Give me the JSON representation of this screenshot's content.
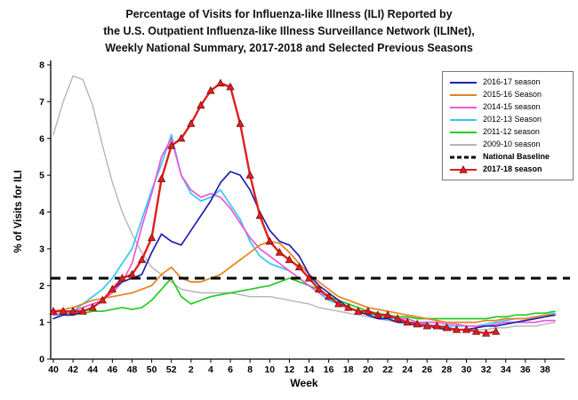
{
  "title": {
    "line1": "Percentage of Visits for Influenza-like Illness (ILI) Reported by",
    "line2": "the U.S. Outpatient Influenza-like Illness Surveillance Network (ILINet),",
    "line3": "Weekly National Summary, 2017-2018 and Selected Previous Seasons"
  },
  "chart_data": {
    "type": "line",
    "xlabel": "Week",
    "ylabel": "% of Visits for ILI",
    "ylim": [
      0,
      8
    ],
    "y_ticks": [
      0,
      1,
      2,
      3,
      4,
      5,
      6,
      7,
      8
    ],
    "grid": false,
    "legend_position": "top-right",
    "x_labels": [
      "40",
      "41",
      "42",
      "43",
      "44",
      "45",
      "46",
      "47",
      "48",
      "49",
      "50",
      "51",
      "52",
      "1",
      "2",
      "3",
      "4",
      "5",
      "6",
      "7",
      "8",
      "9",
      "10",
      "11",
      "12",
      "13",
      "14",
      "15",
      "16",
      "17",
      "18",
      "19",
      "20",
      "21",
      "22",
      "23",
      "24",
      "25",
      "26",
      "27",
      "28",
      "29",
      "30",
      "31",
      "32",
      "33",
      "34",
      "35",
      "36",
      "37",
      "38",
      "39"
    ],
    "x_tick_labels": [
      "40",
      "42",
      "44",
      "46",
      "48",
      "50",
      "52",
      "2",
      "4",
      "6",
      "8",
      "10",
      "12",
      "14",
      "16",
      "18",
      "20",
      "22",
      "24",
      "26",
      "28",
      "30",
      "32",
      "34",
      "36",
      "38"
    ],
    "series": [
      {
        "name": "2016-17 season",
        "color": "#2020b0",
        "width": 1.7,
        "values": [
          1.1,
          1.2,
          1.2,
          1.3,
          1.4,
          1.6,
          1.9,
          2.1,
          2.2,
          2.3,
          2.9,
          3.4,
          3.2,
          3.1,
          3.5,
          3.9,
          4.3,
          4.8,
          5.1,
          5.0,
          4.6,
          4.0,
          3.5,
          3.2,
          3.1,
          2.8,
          2.3,
          2.0,
          1.8,
          1.6,
          1.4,
          1.3,
          1.2,
          1.1,
          1.1,
          1.0,
          1.0,
          0.9,
          0.9,
          0.85,
          0.8,
          0.8,
          0.8,
          0.85,
          0.9,
          0.9,
          0.95,
          1.0,
          1.05,
          1.1,
          1.15,
          1.2
        ]
      },
      {
        "name": "2015-16 Season",
        "color": "#e8821e",
        "width": 1.7,
        "values": [
          1.3,
          1.35,
          1.4,
          1.5,
          1.6,
          1.65,
          1.7,
          1.75,
          1.8,
          1.9,
          2.0,
          2.3,
          2.5,
          2.2,
          2.1,
          2.1,
          2.2,
          2.3,
          2.5,
          2.7,
          2.9,
          3.1,
          3.2,
          3.15,
          2.9,
          2.6,
          2.3,
          2.1,
          1.9,
          1.7,
          1.6,
          1.5,
          1.4,
          1.35,
          1.3,
          1.25,
          1.2,
          1.15,
          1.1,
          1.05,
          1.0,
          1.0,
          1.0,
          1.0,
          1.05,
          1.05,
          1.1,
          1.1,
          1.1,
          1.15,
          1.2,
          1.2
        ]
      },
      {
        "name": "2014-15 season",
        "color": "#ee55dd",
        "width": 1.7,
        "values": [
          1.2,
          1.25,
          1.3,
          1.4,
          1.5,
          1.6,
          1.8,
          2.1,
          2.6,
          3.6,
          4.5,
          5.5,
          6.0,
          5.0,
          4.6,
          4.4,
          4.5,
          4.4,
          4.1,
          3.7,
          3.3,
          3.0,
          2.8,
          2.6,
          2.4,
          2.2,
          2.0,
          1.8,
          1.7,
          1.5,
          1.4,
          1.3,
          1.3,
          1.2,
          1.2,
          1.1,
          1.1,
          1.0,
          1.0,
          1.0,
          0.95,
          0.95,
          0.9,
          0.9,
          0.9,
          0.95,
          1.0,
          1.0,
          1.0,
          1.0,
          1.05,
          1.05
        ]
      },
      {
        "name": "2012-13 Season",
        "color": "#35c8f0",
        "width": 1.7,
        "values": [
          1.2,
          1.2,
          1.3,
          1.5,
          1.7,
          1.9,
          2.2,
          2.6,
          3.0,
          3.8,
          4.6,
          5.3,
          6.1,
          5.0,
          4.5,
          4.3,
          4.4,
          4.6,
          4.2,
          3.8,
          3.2,
          2.8,
          2.6,
          2.5,
          2.4,
          2.2,
          2.0,
          1.8,
          1.6,
          1.5,
          1.4,
          1.3,
          1.2,
          1.2,
          1.1,
          1.1,
          1.0,
          1.0,
          0.95,
          0.9,
          0.9,
          0.9,
          0.9,
          0.9,
          0.95,
          1.0,
          1.05,
          1.1,
          1.1,
          1.15,
          1.2,
          1.25
        ]
      },
      {
        "name": "2011-12 season",
        "color": "#22cc22",
        "width": 1.7,
        "values": [
          1.2,
          1.2,
          1.2,
          1.25,
          1.3,
          1.3,
          1.35,
          1.4,
          1.35,
          1.4,
          1.6,
          1.9,
          2.2,
          1.7,
          1.5,
          1.6,
          1.7,
          1.75,
          1.8,
          1.85,
          1.9,
          1.95,
          2.0,
          2.1,
          2.2,
          2.1,
          2.0,
          1.9,
          1.7,
          1.6,
          1.5,
          1.4,
          1.3,
          1.25,
          1.2,
          1.15,
          1.15,
          1.1,
          1.1,
          1.1,
          1.1,
          1.1,
          1.1,
          1.1,
          1.1,
          1.15,
          1.15,
          1.2,
          1.2,
          1.25,
          1.25,
          1.3
        ]
      },
      {
        "name": "2009-10 season",
        "color": "#b5b5b5",
        "width": 1.4,
        "values": [
          6.1,
          7.0,
          7.7,
          7.6,
          6.9,
          5.8,
          4.8,
          4.0,
          3.4,
          2.9,
          2.5,
          2.3,
          2.1,
          1.9,
          1.85,
          1.8,
          1.8,
          1.8,
          1.8,
          1.75,
          1.7,
          1.7,
          1.7,
          1.65,
          1.6,
          1.55,
          1.5,
          1.4,
          1.35,
          1.3,
          1.25,
          1.2,
          1.15,
          1.1,
          1.05,
          1.0,
          0.95,
          0.9,
          0.9,
          0.85,
          0.85,
          0.8,
          0.8,
          0.8,
          0.8,
          0.85,
          0.85,
          0.9,
          0.9,
          0.9,
          0.95,
          1.0
        ]
      },
      {
        "name": "National Baseline",
        "color": "#000000",
        "type": "baseline",
        "value": 2.2,
        "width": 3,
        "dash": "11 7",
        "bold": true
      },
      {
        "name": "2017-18 season",
        "color": "#df1e1e",
        "width": 2.4,
        "marker": "triangle",
        "bold": true,
        "values": [
          1.3,
          1.3,
          1.3,
          1.3,
          1.4,
          1.6,
          1.9,
          2.2,
          2.3,
          2.7,
          3.3,
          4.9,
          5.8,
          6.0,
          6.4,
          6.9,
          7.3,
          7.5,
          7.4,
          6.4,
          5.0,
          3.9,
          3.2,
          2.9,
          2.7,
          2.5,
          2.2,
          1.9,
          1.7,
          1.5,
          1.4,
          1.3,
          1.3,
          1.2,
          1.2,
          1.1,
          1.0,
          0.95,
          0.9,
          0.9,
          0.85,
          0.8,
          0.8,
          0.75,
          0.7,
          0.75,
          null,
          null,
          null,
          null,
          null,
          null
        ]
      }
    ],
    "draw_order": [
      5,
      4,
      3,
      2,
      1,
      0,
      6,
      7
    ]
  }
}
